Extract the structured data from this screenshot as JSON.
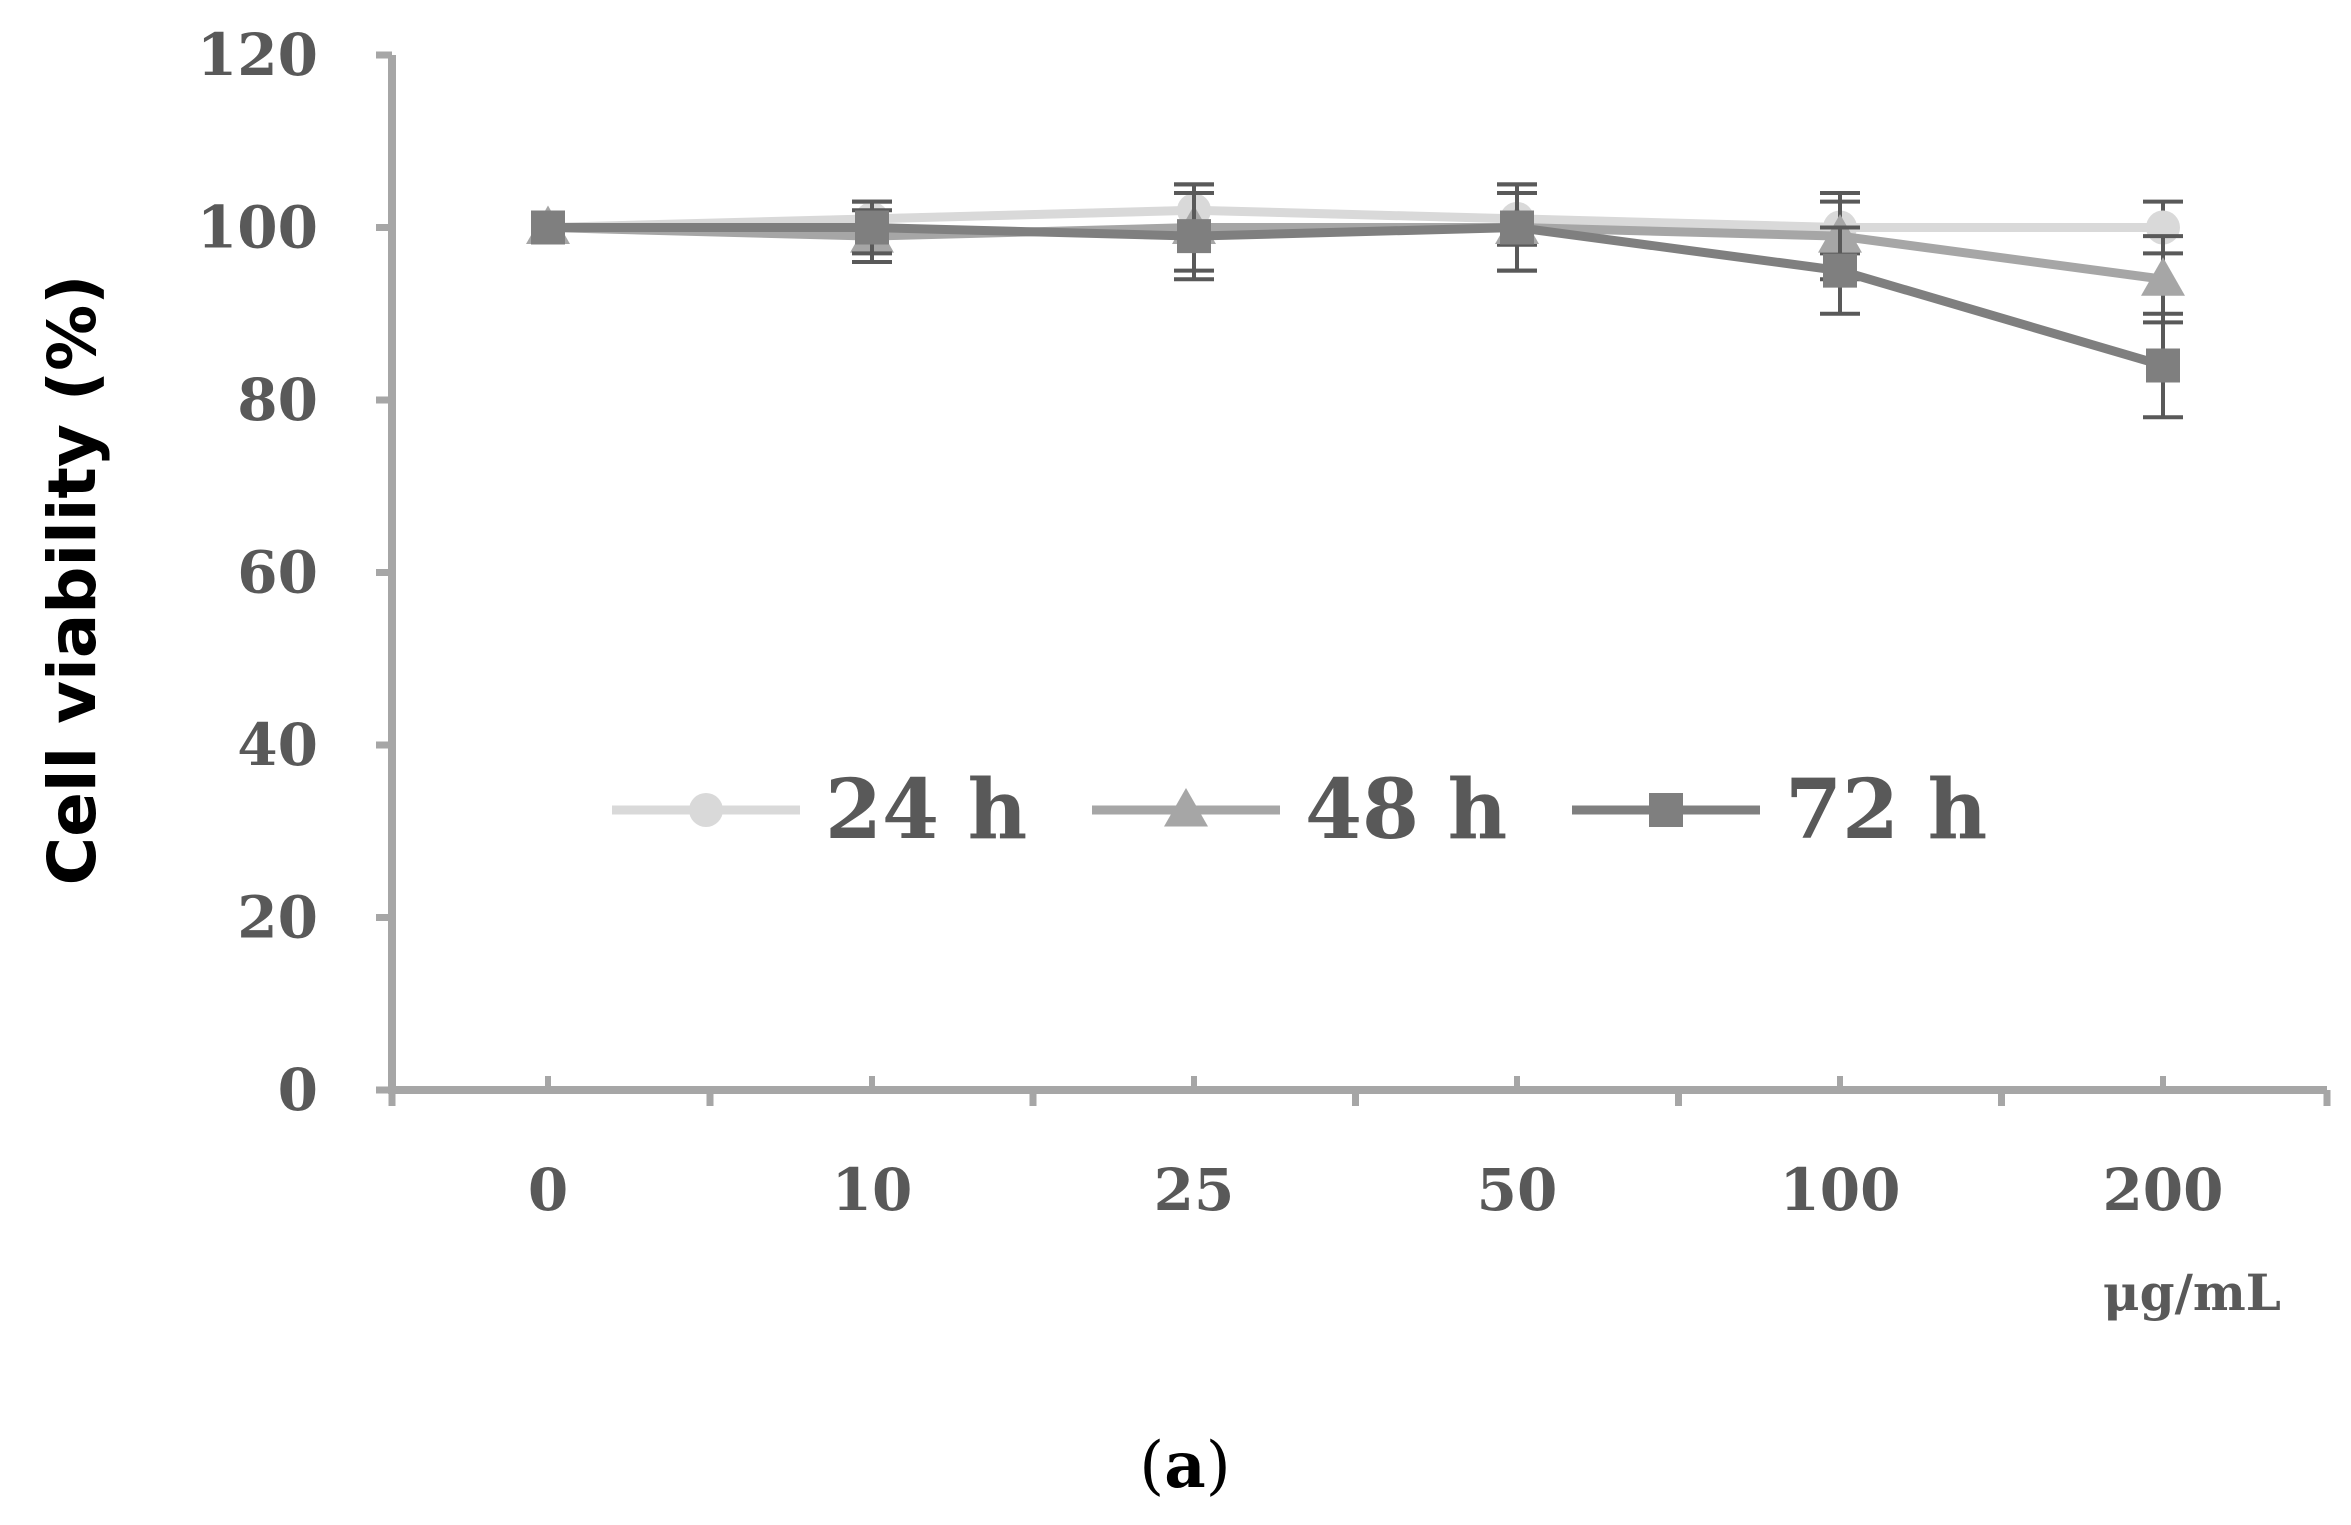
{
  "chart_data": {
    "type": "line",
    "ylabel": "Cell viability  (%)",
    "x_unit": "μg/mL",
    "caption_letter": "a",
    "categories": [
      "0",
      "10",
      "25",
      "50",
      "100",
      "200"
    ],
    "y_ticks": [
      "0",
      "20",
      "40",
      "60",
      "80",
      "100",
      "120"
    ],
    "ylim": [
      0,
      120
    ],
    "grid": false,
    "legend_position": "center",
    "series": [
      {
        "name": "24 h",
        "marker": "circle",
        "color": "#d9d9d9",
        "values": [
          100,
          101,
          102,
          101,
          100,
          100
        ],
        "errors": [
          0,
          2,
          3,
          3,
          3,
          3
        ]
      },
      {
        "name": "48 h",
        "marker": "triangle",
        "color": "#a6a6a6",
        "values": [
          100,
          99,
          100,
          100,
          99,
          94
        ],
        "errors": [
          0,
          3,
          5,
          5,
          5,
          5
        ]
      },
      {
        "name": "72 h",
        "marker": "square",
        "color": "#7f7f7f",
        "values": [
          100,
          100,
          99,
          100,
          95,
          84
        ],
        "errors": [
          0,
          3,
          5,
          5,
          5,
          6
        ]
      }
    ]
  }
}
